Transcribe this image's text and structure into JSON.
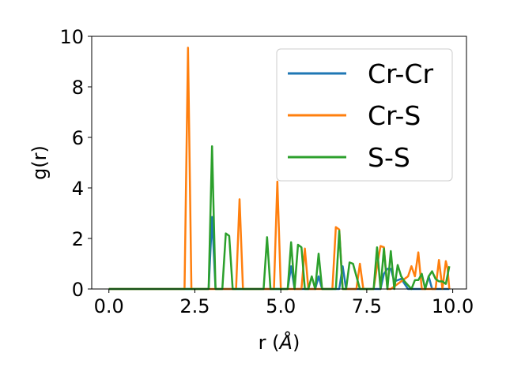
{
  "chart_data": {
    "type": "line",
    "title": "",
    "xlabel": "r (Å)",
    "ylabel": "g(r)",
    "xlim": [
      -0.5,
      10.4
    ],
    "ylim": [
      0,
      10
    ],
    "xticks": [
      0.0,
      2.5,
      5.0,
      7.5,
      10.0
    ],
    "xtick_labels": [
      "0.0",
      "2.5",
      "5.0",
      "7.5",
      "10.0"
    ],
    "yticks": [
      0,
      2,
      4,
      6,
      8,
      10
    ],
    "ytick_labels": [
      "0",
      "2",
      "4",
      "6",
      "8",
      "10"
    ],
    "grid": false,
    "legend_position": "top-right",
    "series": [
      {
        "name": "Cr-Cr",
        "color": "#1f77b4",
        "x": [
          0,
          2.9,
          3.0,
          3.1,
          5.2,
          5.3,
          5.4,
          6.0,
          6.1,
          6.2,
          6.7,
          6.8,
          6.9,
          7.9,
          8.0,
          8.1,
          8.2,
          8.3,
          8.5,
          8.7,
          9.2,
          9.3,
          9.4,
          9.9
        ],
        "y": [
          0,
          0,
          2.85,
          0,
          0,
          0.9,
          0,
          0,
          0.5,
          0,
          0,
          0.9,
          0,
          0,
          0.6,
          0.8,
          0.8,
          0.3,
          0.4,
          0,
          0,
          0.5,
          0,
          0
        ]
      },
      {
        "name": "Cr-S",
        "color": "#ff7f0e",
        "x": [
          0,
          2.2,
          2.3,
          2.4,
          3.7,
          3.8,
          3.9,
          4.8,
          4.9,
          5.0,
          5.6,
          5.7,
          5.8,
          6.5,
          6.6,
          6.7,
          6.8,
          7.2,
          7.3,
          7.4,
          7.7,
          7.8,
          7.9,
          8.0,
          8.1,
          8.2,
          8.7,
          8.8,
          8.9,
          9.0,
          9.1,
          9.5,
          9.6,
          9.7,
          9.8,
          9.85,
          9.9
        ],
        "y": [
          0,
          0,
          9.55,
          0,
          0,
          3.55,
          0,
          0,
          4.25,
          0,
          0,
          1.6,
          0,
          0,
          2.45,
          2.35,
          0,
          0,
          1.0,
          0,
          0,
          0.9,
          1.7,
          1.65,
          0,
          0,
          0.5,
          0.9,
          0.5,
          1.45,
          0,
          0,
          1.15,
          0,
          1.1,
          0.8,
          0
        ]
      },
      {
        "name": "S-S",
        "color": "#2ca02c",
        "x": [
          0,
          2.9,
          3.0,
          3.1,
          3.3,
          3.4,
          3.5,
          3.6,
          4.5,
          4.6,
          4.7,
          5.2,
          5.3,
          5.4,
          5.5,
          5.6,
          5.7,
          5.8,
          5.9,
          6.0,
          6.1,
          6.2,
          6.6,
          6.7,
          6.8,
          6.9,
          7.0,
          7.1,
          7.3,
          7.7,
          7.8,
          7.9,
          8.0,
          8.1,
          8.2,
          8.3,
          8.4,
          8.5,
          8.6,
          8.8,
          8.9,
          9.0,
          9.1,
          9.2,
          9.3,
          9.4,
          9.5,
          9.6,
          9.7,
          9.8,
          9.9
        ],
        "y": [
          0,
          0,
          5.65,
          0,
          0,
          2.2,
          2.1,
          0,
          0,
          2.05,
          0,
          0,
          1.85,
          0,
          1.75,
          1.65,
          0,
          0,
          0.5,
          0,
          1.4,
          0,
          0,
          2.3,
          0,
          0,
          1.05,
          1.0,
          0,
          0,
          1.65,
          0,
          1.6,
          0,
          1.5,
          0,
          0.95,
          0.5,
          0.3,
          0,
          0.35,
          0.35,
          0.6,
          0,
          0.5,
          0.7,
          0.4,
          0.3,
          0.3,
          0.2,
          0.9
        ]
      }
    ]
  }
}
